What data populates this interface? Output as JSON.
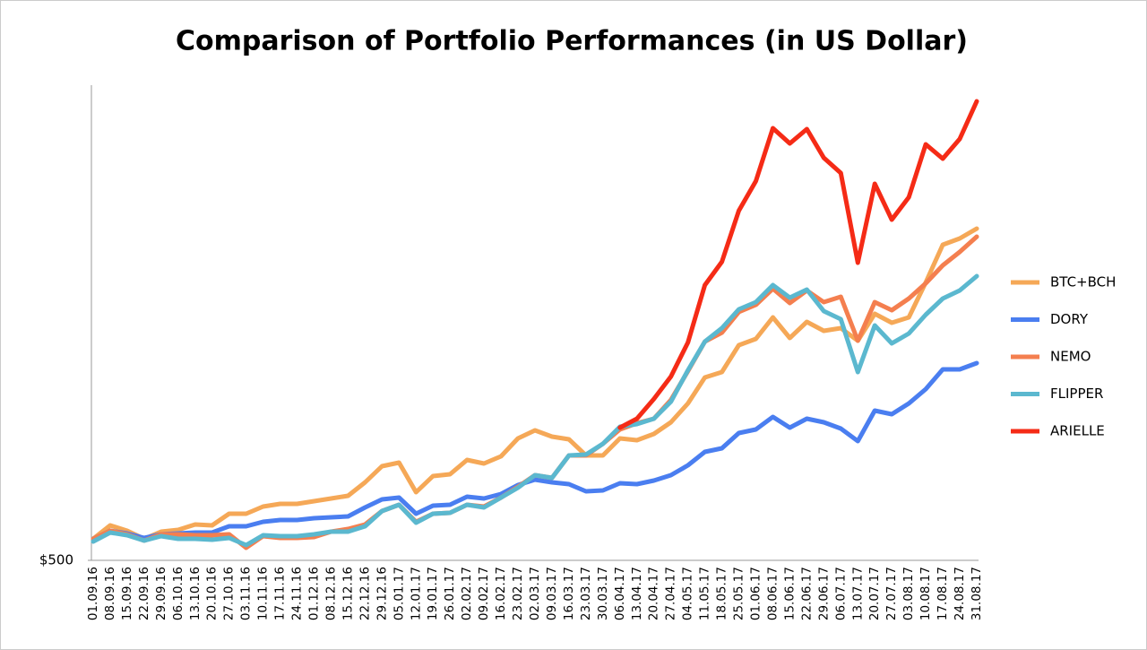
{
  "chart_data": {
    "type": "line",
    "title": "Comparison of Portfolio Performances (in US Dollar)",
    "categories": [
      "01.09.16",
      "08.09.16",
      "15.09.16",
      "22.09.16",
      "29.09.16",
      "06.10.16",
      "13.10.16",
      "20.10.16",
      "27.10.16",
      "03.11.16",
      "10.11.16",
      "17.11.16",
      "24.11.16",
      "01.12.16",
      "08.12.16",
      "15.12.16",
      "22.12.16",
      "29.12.16",
      "05.01.17",
      "12.01.17",
      "19.01.17",
      "26.01.17",
      "02.02.17",
      "09.02.17",
      "16.02.17",
      "23.02.17",
      "02.03.17",
      "09.03.17",
      "16.03.17",
      "23.03.17",
      "30.03.17",
      "06.04.17",
      "13.04.17",
      "20.04.17",
      "27.04.17",
      "04.05.17",
      "11.05.17",
      "18.05.17",
      "25.05.17",
      "01.06.17",
      "08.06.17",
      "15.06.17",
      "22.06.17",
      "29.06.17",
      "06.07.17",
      "13.07.17",
      "20.07.17",
      "27.07.17",
      "03.08.17",
      "10.08.17",
      "17.08.17",
      "24.08.17",
      "31.08.17"
    ],
    "series": [
      {
        "name": "BTC+BCH",
        "color": "#f5a857",
        "values": [
          620,
          695,
          665,
          620,
          660,
          670,
          700,
          695,
          760,
          760,
          800,
          815,
          815,
          830,
          845,
          860,
          935,
          1025,
          1045,
          880,
          970,
          980,
          1060,
          1040,
          1080,
          1180,
          1225,
          1190,
          1175,
          1085,
          1085,
          1180,
          1170,
          1205,
          1270,
          1375,
          1520,
          1550,
          1700,
          1735,
          1855,
          1740,
          1830,
          1780,
          1795,
          1725,
          1875,
          1825,
          1855,
          2050,
          2260,
          2295,
          2350
        ]
      },
      {
        "name": "DORY",
        "color": "#4a7ef0",
        "values": [
          620,
          665,
          650,
          625,
          645,
          650,
          655,
          655,
          690,
          690,
          715,
          725,
          725,
          735,
          740,
          745,
          795,
          840,
          850,
          760,
          805,
          810,
          855,
          845,
          870,
          920,
          950,
          935,
          925,
          885,
          890,
          930,
          925,
          945,
          975,
          1030,
          1105,
          1125,
          1210,
          1230,
          1300,
          1240,
          1290,
          1270,
          1235,
          1165,
          1335,
          1315,
          1375,
          1455,
          1565,
          1565,
          1600
        ]
      },
      {
        "name": "NEMO",
        "color": "#f47f4f",
        "values": [
          620,
          665,
          645,
          610,
          645,
          645,
          640,
          640,
          645,
          570,
          635,
          625,
          625,
          630,
          660,
          675,
          700,
          775,
          810,
          715,
          760,
          765,
          810,
          800,
          850,
          910,
          975,
          960,
          1085,
          1085,
          1150,
          1230,
          1265,
          1290,
          1395,
          1555,
          1720,
          1770,
          1885,
          1925,
          2015,
          1935,
          2005,
          1940,
          1970,
          1725,
          1940,
          1895,
          1960,
          2045,
          2145,
          2220,
          2305
        ]
      },
      {
        "name": "FLIPPER",
        "color": "#5bb8cf",
        "values": [
          605,
          655,
          640,
          610,
          635,
          620,
          620,
          615,
          625,
          585,
          640,
          635,
          635,
          645,
          660,
          660,
          690,
          775,
          810,
          710,
          760,
          765,
          810,
          795,
          850,
          905,
          975,
          960,
          1085,
          1090,
          1150,
          1245,
          1260,
          1290,
          1385,
          1560,
          1720,
          1795,
          1900,
          1940,
          2035,
          1965,
          2010,
          1890,
          1845,
          1550,
          1810,
          1710,
          1765,
          1870,
          1960,
          2005,
          2085
        ]
      },
      {
        "name": "ARIELLE",
        "color": "#f52b16",
        "values": [
          null,
          null,
          null,
          null,
          null,
          null,
          null,
          null,
          null,
          null,
          null,
          null,
          null,
          null,
          null,
          null,
          null,
          null,
          null,
          null,
          null,
          null,
          null,
          null,
          null,
          null,
          null,
          null,
          null,
          null,
          null,
          1240,
          1290,
          1400,
          1525,
          1715,
          2035,
          2165,
          2450,
          2615,
          2910,
          2825,
          2905,
          2745,
          2660,
          2160,
          2600,
          2400,
          2525,
          2820,
          2740,
          2850,
          3060
        ]
      }
    ],
    "ylim": [
      500,
      3150
    ],
    "yticks": [
      {
        "value": 500,
        "label": "$500"
      }
    ],
    "grid": false,
    "legend": "right"
  }
}
